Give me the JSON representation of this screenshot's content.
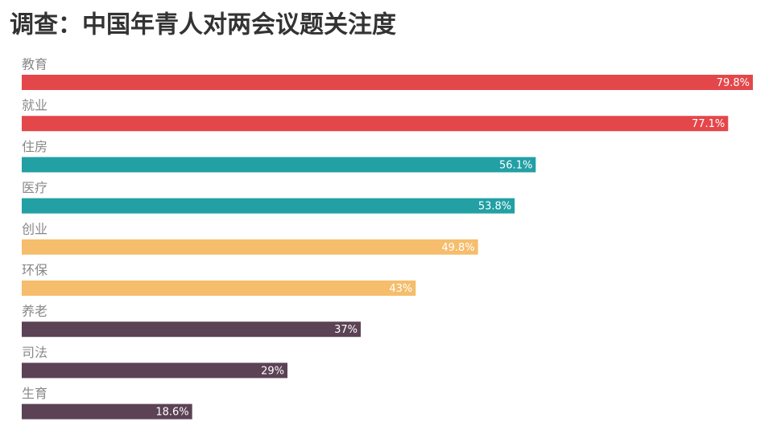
{
  "chart_data": {
    "type": "hbar",
    "title": "调查：中国年青人对两会议题关注度",
    "categories": [
      "教育",
      "就业",
      "住房",
      "医疗",
      "创业",
      "环保",
      "养老",
      "司法",
      "生育"
    ],
    "values": [
      79.8,
      77.1,
      56.1,
      53.8,
      49.8,
      43,
      37,
      29,
      18.6
    ],
    "value_labels": [
      "79.8%",
      "77.1%",
      "56.1%",
      "53.8%",
      "49.8%",
      "43%",
      "37%",
      "29%",
      "18.6%"
    ],
    "colors": [
      "#e4474a",
      "#e4474a",
      "#22a0a4",
      "#22a0a4",
      "#f5bd6c",
      "#f5bd6c",
      "#5b4255",
      "#5b4255",
      "#5b4255"
    ]
  }
}
